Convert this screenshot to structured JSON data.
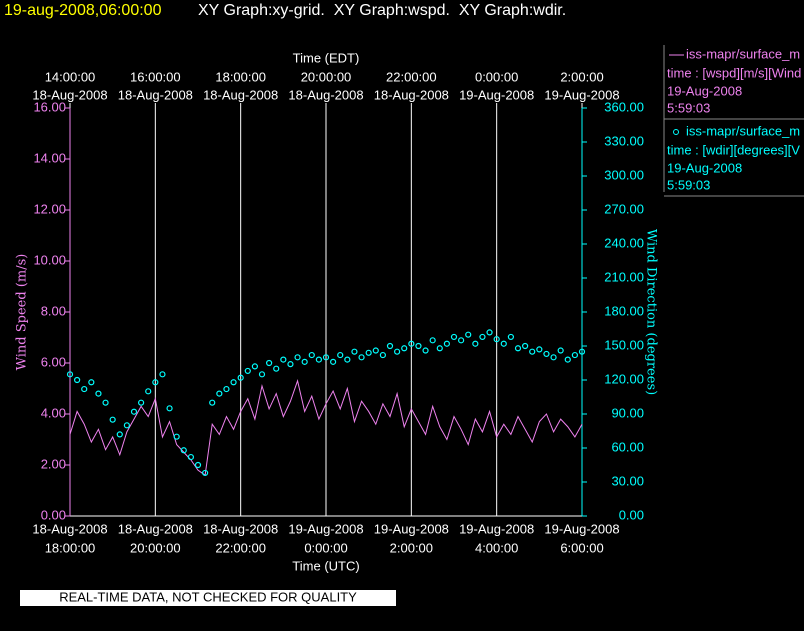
{
  "header": {
    "stamp": "19-aug-2008,06:00:00",
    "title": "XY Graph:xy-grid.  XY Graph:wspd.  XY Graph:wdir."
  },
  "footer": "REAL-TIME DATA, NOT CHECKED FOR QUALITY",
  "chart_data": {
    "type": "line-scatter",
    "xlabel": "Time (UTC)",
    "x2label": "Time (EDT)",
    "ylabel": "Wind Speed (m/s)",
    "y2label": "Wind Direction (degrees)",
    "grid": true,
    "xlim": [
      "2008-08-18T18:00:00",
      "2008-08-19T06:00:00"
    ],
    "xticks": [
      {
        "value": "2008-08-18T18:00:00",
        "label": [
          "18-Aug-2008",
          "18:00:00"
        ]
      },
      {
        "value": "2008-08-18T20:00:00",
        "label": [
          "18-Aug-2008",
          "20:00:00"
        ]
      },
      {
        "value": "2008-08-18T22:00:00",
        "label": [
          "18-Aug-2008",
          "22:00:00"
        ]
      },
      {
        "value": "2008-08-19T00:00:00",
        "label": [
          "19-Aug-2008",
          "0:00:00"
        ]
      },
      {
        "value": "2008-08-19T02:00:00",
        "label": [
          "19-Aug-2008",
          "2:00:00"
        ]
      },
      {
        "value": "2008-08-19T04:00:00",
        "label": [
          "19-Aug-2008",
          "4:00:00"
        ]
      },
      {
        "value": "2008-08-19T06:00:00",
        "label": [
          "19-Aug-2008",
          "6:00:00"
        ]
      }
    ],
    "x2ticks": [
      {
        "value": "2008-08-18T18:00:00",
        "label": [
          "14:00:00",
          "18-Aug-2008"
        ]
      },
      {
        "value": "2008-08-18T20:00:00",
        "label": [
          "16:00:00",
          "18-Aug-2008"
        ]
      },
      {
        "value": "2008-08-18T22:00:00",
        "label": [
          "18:00:00",
          "18-Aug-2008"
        ]
      },
      {
        "value": "2008-08-19T00:00:00",
        "label": [
          "20:00:00",
          "18-Aug-2008"
        ]
      },
      {
        "value": "2008-08-19T02:00:00",
        "label": [
          "22:00:00",
          "18-Aug-2008"
        ]
      },
      {
        "value": "2008-08-19T04:00:00",
        "label": [
          "0:00:00",
          "19-Aug-2008"
        ]
      },
      {
        "value": "2008-08-19T06:00:00",
        "label": [
          "2:00:00",
          "19-Aug-2008"
        ]
      }
    ],
    "ylim": [
      0,
      16
    ],
    "yticks": [
      {
        "value": 0,
        "label": "0.00"
      },
      {
        "value": 2,
        "label": "2.00"
      },
      {
        "value": 4,
        "label": "4.00"
      },
      {
        "value": 6,
        "label": "6.00"
      },
      {
        "value": 8,
        "label": "8.00"
      },
      {
        "value": 10,
        "label": "10.00"
      },
      {
        "value": 12,
        "label": "12.00"
      },
      {
        "value": 14,
        "label": "14.00"
      },
      {
        "value": 16,
        "label": "16.00"
      }
    ],
    "y2lim": [
      0,
      360
    ],
    "y2ticks": [
      {
        "value": 0,
        "label": "0.00"
      },
      {
        "value": 30,
        "label": "30.00"
      },
      {
        "value": 60,
        "label": "60.00"
      },
      {
        "value": 90,
        "label": "90.00"
      },
      {
        "value": 120,
        "label": "120.00"
      },
      {
        "value": 150,
        "label": "150.00"
      },
      {
        "value": 180,
        "label": "180.00"
      },
      {
        "value": 210,
        "label": "210.00"
      },
      {
        "value": 240,
        "label": "240.00"
      },
      {
        "value": 270,
        "label": "270.00"
      },
      {
        "value": 300,
        "label": "300.00"
      },
      {
        "value": 330,
        "label": "330.00"
      },
      {
        "value": 360,
        "label": "360.00"
      }
    ],
    "x": [
      "2008-08-18T18:00",
      "2008-08-18T18:10",
      "2008-08-18T18:20",
      "2008-08-18T18:30",
      "2008-08-18T18:40",
      "2008-08-18T18:50",
      "2008-08-18T19:00",
      "2008-08-18T19:10",
      "2008-08-18T19:20",
      "2008-08-18T19:30",
      "2008-08-18T19:40",
      "2008-08-18T19:50",
      "2008-08-18T20:00",
      "2008-08-18T20:10",
      "2008-08-18T20:20",
      "2008-08-18T20:30",
      "2008-08-18T20:40",
      "2008-08-18T20:50",
      "2008-08-18T21:00",
      "2008-08-18T21:10",
      "2008-08-18T21:20",
      "2008-08-18T21:30",
      "2008-08-18T21:40",
      "2008-08-18T21:50",
      "2008-08-18T22:00",
      "2008-08-18T22:10",
      "2008-08-18T22:20",
      "2008-08-18T22:30",
      "2008-08-18T22:40",
      "2008-08-18T22:50",
      "2008-08-18T23:00",
      "2008-08-18T23:10",
      "2008-08-18T23:20",
      "2008-08-18T23:30",
      "2008-08-18T23:40",
      "2008-08-18T23:50",
      "2008-08-19T00:00",
      "2008-08-19T00:10",
      "2008-08-19T00:20",
      "2008-08-19T00:30",
      "2008-08-19T00:40",
      "2008-08-19T00:50",
      "2008-08-19T01:00",
      "2008-08-19T01:10",
      "2008-08-19T01:20",
      "2008-08-19T01:30",
      "2008-08-19T01:40",
      "2008-08-19T01:50",
      "2008-08-19T02:00",
      "2008-08-19T02:10",
      "2008-08-19T02:20",
      "2008-08-19T02:30",
      "2008-08-19T02:40",
      "2008-08-19T02:50",
      "2008-08-19T03:00",
      "2008-08-19T03:10",
      "2008-08-19T03:20",
      "2008-08-19T03:30",
      "2008-08-19T03:40",
      "2008-08-19T03:50",
      "2008-08-19T04:00",
      "2008-08-19T04:10",
      "2008-08-19T04:20",
      "2008-08-19T04:30",
      "2008-08-19T04:40",
      "2008-08-19T04:50",
      "2008-08-19T05:00",
      "2008-08-19T05:10",
      "2008-08-19T05:20",
      "2008-08-19T05:30",
      "2008-08-19T05:40",
      "2008-08-19T05:50",
      "2008-08-19T06:00"
    ],
    "series": [
      {
        "name": "iss-mapr/surface_m",
        "legend_text": "time : [wspd][m/s][Wind",
        "legend_date": "19-Aug-2008",
        "legend_time": "5:59:03",
        "color": "#ee82ee",
        "mark": "line",
        "values": [
          3.2,
          4.1,
          3.6,
          2.9,
          3.4,
          2.6,
          3.1,
          2.4,
          3.3,
          3.8,
          4.3,
          3.9,
          4.6,
          3.1,
          3.7,
          2.8,
          2.5,
          2.2,
          1.8,
          1.6,
          3.6,
          3.2,
          3.9,
          3.4,
          4.1,
          4.6,
          3.8,
          5.1,
          4.2,
          4.8,
          3.9,
          4.5,
          5.3,
          4.1,
          4.7,
          3.8,
          4.4,
          4.9,
          4.2,
          5.0,
          3.7,
          4.5,
          4.1,
          3.6,
          4.4,
          3.9,
          4.8,
          3.5,
          4.2,
          3.7,
          3.2,
          4.3,
          3.5,
          3.0,
          3.9,
          3.4,
          2.8,
          3.8,
          3.3,
          4.1,
          3.1,
          3.6,
          3.2,
          3.9,
          3.4,
          2.9,
          3.7,
          4.0,
          3.3,
          3.8,
          3.5,
          3.1,
          3.6
        ]
      },
      {
        "name": "iss-mapr/surface_m",
        "legend_text": "time : [wdir][degrees][V",
        "legend_date": "19-Aug-2008",
        "legend_time": "5:59:03",
        "color": "#00ffff",
        "mark": "scatter",
        "axis": "y2",
        "values": [
          125,
          120,
          112,
          118,
          108,
          100,
          85,
          72,
          80,
          92,
          100,
          110,
          118,
          125,
          95,
          70,
          58,
          52,
          45,
          38,
          100,
          108,
          112,
          118,
          122,
          128,
          132,
          125,
          135,
          130,
          138,
          134,
          140,
          136,
          142,
          138,
          140,
          136,
          142,
          138,
          145,
          140,
          144,
          146,
          142,
          150,
          145,
          148,
          152,
          150,
          146,
          155,
          148,
          152,
          158,
          155,
          160,
          152,
          158,
          162,
          156,
          152,
          158,
          148,
          150,
          145,
          147,
          143,
          140,
          146,
          138,
          142,
          145
        ]
      }
    ]
  }
}
